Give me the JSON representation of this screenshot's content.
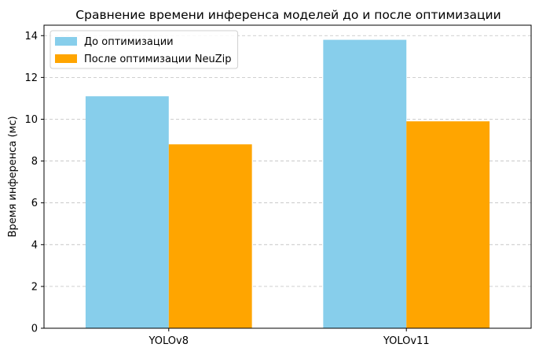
{
  "chart_data": {
    "type": "bar",
    "title": "Сравнение времени инференса моделей до и после оптимизации",
    "xlabel": "",
    "ylabel": "Время инференса (мс)",
    "categories": [
      "YOLOv8",
      "YOLOv11"
    ],
    "series": [
      {
        "name": "До оптимизации",
        "values": [
          11.1,
          13.8
        ],
        "color": "#87CEEB"
      },
      {
        "name": "После оптимизации NeuZip",
        "values": [
          8.8,
          9.9
        ],
        "color": "#FFA500"
      }
    ],
    "ylim": [
      0,
      14.5
    ],
    "yticks": [
      0,
      2,
      4,
      6,
      8,
      10,
      12,
      14
    ],
    "grid": "y-dashed",
    "legend_position": "top-left"
  }
}
